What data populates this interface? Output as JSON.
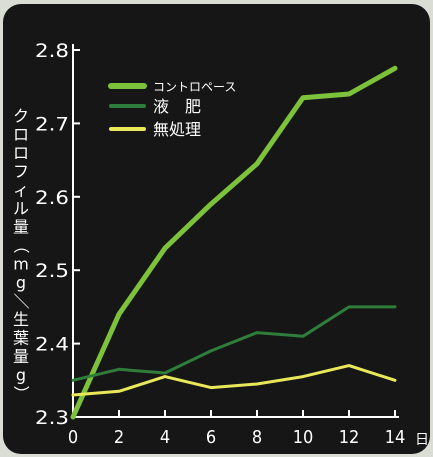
{
  "chart_data": {
    "type": "line",
    "title": "",
    "xlabel": "日",
    "ylabel": "クロロフィル量（mg／生葉量g）",
    "x": [
      0,
      2,
      4,
      6,
      8,
      10,
      12,
      14
    ],
    "xlim": [
      0,
      14
    ],
    "ylim": [
      2.3,
      2.8
    ],
    "yticks": [
      "2.3",
      "2.4",
      "2.5",
      "2.6",
      "2.7",
      "2.8"
    ],
    "xticks": [
      "0",
      "2",
      "4",
      "6",
      "8",
      "10",
      "12",
      "14"
    ],
    "grid": false,
    "legend_position": "top-left",
    "series": [
      {
        "name": "コントロペース",
        "color": "#7cc23a",
        "width": 5,
        "values": [
          2.3,
          2.44,
          2.53,
          2.59,
          2.645,
          2.735,
          2.74,
          2.775
        ]
      },
      {
        "name": "液　肥",
        "color": "#2e7d3a",
        "width": 3,
        "values": [
          2.35,
          2.365,
          2.36,
          2.39,
          2.415,
          2.41,
          2.45,
          2.45
        ]
      },
      {
        "name": "無処理",
        "color": "#e8e85a",
        "width": 3,
        "values": [
          2.33,
          2.335,
          2.355,
          2.34,
          2.345,
          2.355,
          2.37,
          2.35
        ]
      }
    ]
  }
}
